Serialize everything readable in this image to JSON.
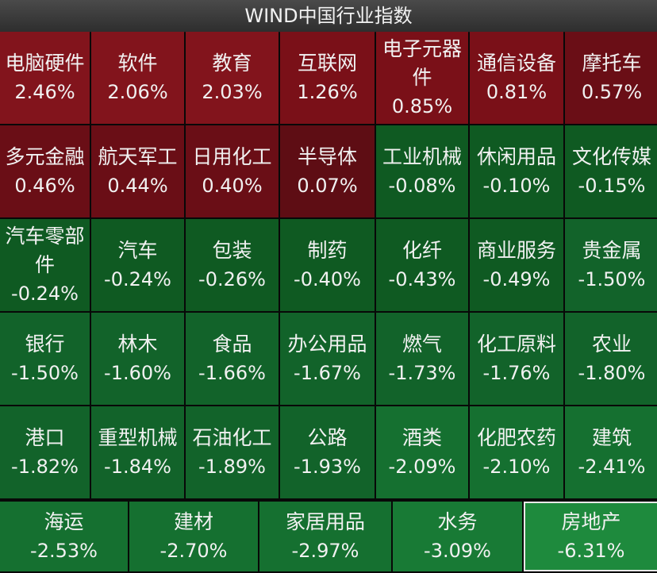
{
  "header": {
    "title": "WIND中国行业指数"
  },
  "colors": {
    "up": "#7a1018",
    "down": "#0f5a22",
    "highlight": "#1e8a3d"
  },
  "tiles": [
    {
      "name": "电脑硬件",
      "pct": "2.46%",
      "tone": "red2"
    },
    {
      "name": "软件",
      "pct": "2.06%",
      "tone": "red2"
    },
    {
      "name": "教育",
      "pct": "2.03%",
      "tone": "red2"
    },
    {
      "name": "互联网",
      "pct": "1.26%",
      "tone": "red"
    },
    {
      "name": "电子元器件",
      "pct": "0.85%",
      "tone": "red"
    },
    {
      "name": "通信设备",
      "pct": "0.81%",
      "tone": "red"
    },
    {
      "name": "摩托车",
      "pct": "0.57%",
      "tone": "red3"
    },
    {
      "name": "多元金融",
      "pct": "0.46%",
      "tone": "red3"
    },
    {
      "name": "航天军工",
      "pct": "0.44%",
      "tone": "red3"
    },
    {
      "name": "日用化工",
      "pct": "0.40%",
      "tone": "red3"
    },
    {
      "name": "半导体",
      "pct": "0.07%",
      "tone": "redd"
    },
    {
      "name": "工业机械",
      "pct": "-0.08%",
      "tone": "green"
    },
    {
      "name": "休闲用品",
      "pct": "-0.10%",
      "tone": "green"
    },
    {
      "name": "文化传媒",
      "pct": "-0.15%",
      "tone": "green"
    },
    {
      "name": "汽车零部件",
      "pct": "-0.24%",
      "tone": "green"
    },
    {
      "name": "汽车",
      "pct": "-0.24%",
      "tone": "green"
    },
    {
      "name": "包装",
      "pct": "-0.26%",
      "tone": "green"
    },
    {
      "name": "制药",
      "pct": "-0.40%",
      "tone": "green"
    },
    {
      "name": "化纤",
      "pct": "-0.43%",
      "tone": "green"
    },
    {
      "name": "商业服务",
      "pct": "-0.49%",
      "tone": "green"
    },
    {
      "name": "贵金属",
      "pct": "-1.50%",
      "tone": "green2"
    },
    {
      "name": "银行",
      "pct": "-1.50%",
      "tone": "green2"
    },
    {
      "name": "林木",
      "pct": "-1.60%",
      "tone": "green2"
    },
    {
      "name": "食品",
      "pct": "-1.66%",
      "tone": "green2"
    },
    {
      "name": "办公用品",
      "pct": "-1.67%",
      "tone": "green2"
    },
    {
      "name": "燃气",
      "pct": "-1.73%",
      "tone": "green2"
    },
    {
      "name": "化工原料",
      "pct": "-1.76%",
      "tone": "green2"
    },
    {
      "name": "农业",
      "pct": "-1.80%",
      "tone": "green2"
    },
    {
      "name": "港口",
      "pct": "-1.82%",
      "tone": "green2"
    },
    {
      "name": "重型机械",
      "pct": "-1.84%",
      "tone": "green2"
    },
    {
      "name": "石油化工",
      "pct": "-1.89%",
      "tone": "green2"
    },
    {
      "name": "公路",
      "pct": "-1.93%",
      "tone": "green2"
    },
    {
      "name": "酒类",
      "pct": "-2.09%",
      "tone": "green3"
    },
    {
      "name": "化肥农药",
      "pct": "-2.10%",
      "tone": "green3"
    },
    {
      "name": "建筑",
      "pct": "-2.41%",
      "tone": "green3"
    }
  ],
  "bottom": [
    {
      "name": "海运",
      "pct": "-2.53%",
      "tone": "green3"
    },
    {
      "name": "建材",
      "pct": "-2.70%",
      "tone": "green3"
    },
    {
      "name": "家居用品",
      "pct": "-2.97%",
      "tone": "green3"
    },
    {
      "name": "水务",
      "pct": "-3.09%",
      "tone": "green4"
    },
    {
      "name": "房地产",
      "pct": "-6.31%",
      "tone": "bright"
    }
  ]
}
